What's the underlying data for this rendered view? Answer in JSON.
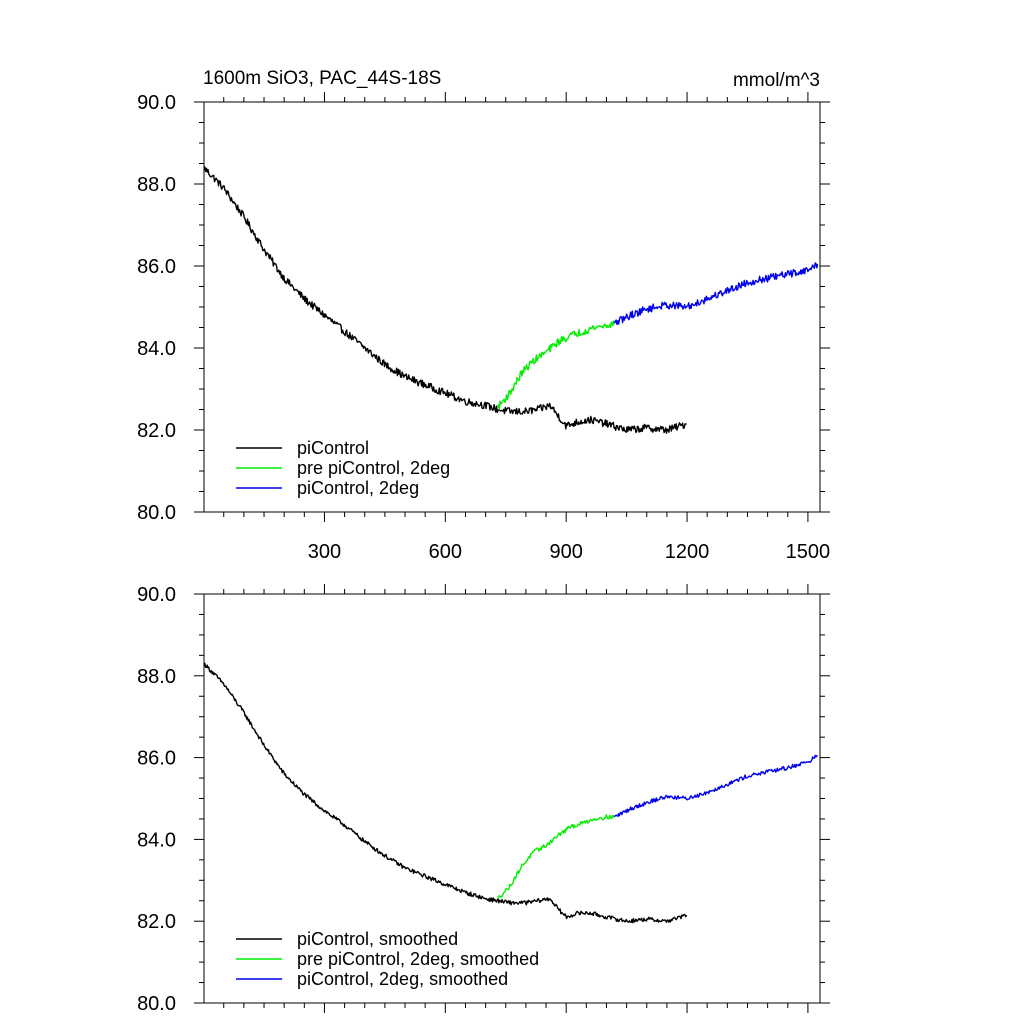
{
  "figure": {
    "title_left": "1600m SiO3, PAC_44S-18S",
    "title_right": "mmol/m^3"
  },
  "colors": {
    "black": "#000000",
    "green": "#00ee00",
    "blue": "#0000ee"
  },
  "chart_data": [
    {
      "type": "line",
      "title": "1600m SiO3, PAC_44S-18S",
      "units": "mmol/m^3",
      "xlabel": "",
      "ylabel": "",
      "xlim": [
        1,
        1530
      ],
      "ylim": [
        80,
        90
      ],
      "x_ticks": [
        300,
        600,
        900,
        1200,
        1500
      ],
      "x_tick_labels": [
        "300",
        "600",
        "900",
        "1200",
        "1500"
      ],
      "y_ticks": [
        80,
        82,
        84,
        86,
        88,
        90
      ],
      "y_tick_labels": [
        "80.0",
        "82.0",
        "84.0",
        "86.0",
        "88.0",
        "90.0"
      ],
      "legend_position": "bottom-left",
      "series": [
        {
          "name": "piControl",
          "color": "#000000",
          "x": [
            1,
            50,
            100,
            150,
            200,
            250,
            300,
            350,
            400,
            450,
            500,
            550,
            600,
            650,
            700,
            730,
            760,
            800,
            830,
            860,
            880,
            900,
            930,
            960,
            1000,
            1050,
            1100,
            1150,
            1200
          ],
          "y": [
            88.4,
            87.9,
            87.2,
            86.4,
            85.7,
            85.2,
            84.8,
            84.4,
            84.0,
            83.6,
            83.3,
            83.1,
            82.9,
            82.7,
            82.6,
            82.5,
            82.45,
            82.45,
            82.5,
            82.6,
            82.35,
            82.1,
            82.2,
            82.25,
            82.15,
            82.0,
            82.05,
            82.0,
            82.15
          ]
        },
        {
          "name": "pre piControl, 2deg",
          "color": "#00ee00",
          "x": [
            730,
            760,
            790,
            820,
            850,
            880,
            910,
            940,
            970,
            1000,
            1020
          ],
          "y": [
            82.55,
            82.9,
            83.4,
            83.7,
            83.9,
            84.15,
            84.3,
            84.4,
            84.5,
            84.55,
            84.6
          ]
        },
        {
          "name": "piControl, 2deg",
          "color": "#0000ee",
          "x": [
            1020,
            1060,
            1100,
            1150,
            1200,
            1250,
            1300,
            1350,
            1400,
            1450,
            1500,
            1525
          ],
          "y": [
            84.6,
            84.8,
            84.95,
            85.05,
            85.0,
            85.2,
            85.4,
            85.6,
            85.7,
            85.8,
            85.9,
            86.05
          ]
        }
      ]
    },
    {
      "type": "line",
      "title": "",
      "xlabel": "",
      "ylabel": "",
      "xlim": [
        1,
        1530
      ],
      "ylim": [
        80,
        90
      ],
      "x_ticks": [
        300,
        600,
        900,
        1200,
        1500
      ],
      "x_tick_labels": [],
      "y_ticks": [
        80,
        82,
        84,
        86,
        88,
        90
      ],
      "y_tick_labels": [
        "80.0",
        "82.0",
        "84.0",
        "86.0",
        "88.0",
        "90.0"
      ],
      "legend_position": "bottom-left",
      "series": [
        {
          "name": "piControl, smoothed",
          "color": "#000000",
          "x": [
            1,
            50,
            100,
            150,
            200,
            250,
            300,
            350,
            400,
            450,
            500,
            550,
            600,
            650,
            700,
            730,
            760,
            800,
            830,
            860,
            880,
            900,
            930,
            960,
            1000,
            1050,
            1100,
            1150,
            1200
          ],
          "y": [
            88.3,
            87.8,
            87.1,
            86.3,
            85.6,
            85.1,
            84.7,
            84.35,
            83.95,
            83.6,
            83.3,
            83.1,
            82.9,
            82.7,
            82.55,
            82.5,
            82.45,
            82.45,
            82.5,
            82.55,
            82.3,
            82.1,
            82.2,
            82.2,
            82.1,
            82.0,
            82.05,
            82.0,
            82.15
          ]
        },
        {
          "name": "pre piControl, 2deg, smoothed",
          "color": "#00ee00",
          "x": [
            730,
            760,
            790,
            820,
            850,
            880,
            910,
            940,
            970,
            1000,
            1020
          ],
          "y": [
            82.55,
            82.85,
            83.35,
            83.7,
            83.85,
            84.1,
            84.3,
            84.4,
            84.5,
            84.55,
            84.55
          ]
        },
        {
          "name": "piControl, 2deg, smoothed",
          "color": "#0000ee",
          "x": [
            1020,
            1060,
            1100,
            1150,
            1200,
            1250,
            1300,
            1350,
            1400,
            1450,
            1500,
            1525
          ],
          "y": [
            84.55,
            84.75,
            84.9,
            85.05,
            85.0,
            85.15,
            85.35,
            85.55,
            85.65,
            85.75,
            85.9,
            86.05
          ]
        }
      ]
    }
  ]
}
